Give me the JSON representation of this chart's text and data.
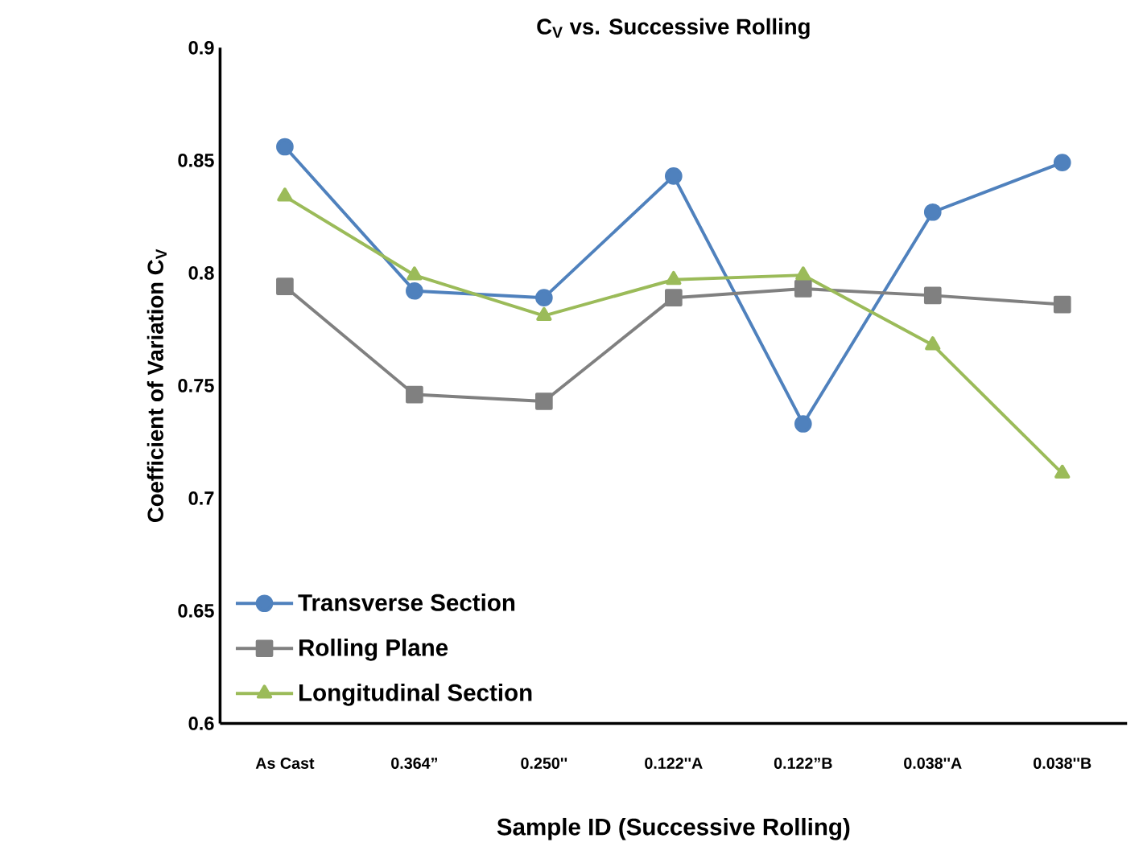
{
  "chart_data": {
    "type": "line",
    "title": "C$_{V}$ vs. Successive Rolling",
    "xlabel": "Sample ID (Successive Rolling)",
    "ylabel": "Coefficient of Variation C$_{V}$",
    "categories": [
      "As Cast",
      "0.364”",
      "0.250''",
      "0.122''A",
      "0.122”B",
      "0.038''A",
      "0.038''B"
    ],
    "ylim": [
      0.6,
      0.9
    ],
    "yticks": [
      0.6,
      0.65,
      0.7,
      0.75,
      0.8,
      0.85,
      0.9
    ],
    "grid": false,
    "legend": "bottom left",
    "line_style": "solid",
    "series": [
      {
        "name": "Transverse Section",
        "color": "#4f81bd",
        "marker": "circle",
        "values": [
          0.856,
          0.792,
          0.789,
          0.843,
          0.733,
          0.827,
          0.849
        ]
      },
      {
        "name": "Rolling Plane",
        "color": "#808080",
        "marker": "square",
        "values": [
          0.794,
          0.746,
          0.743,
          0.789,
          0.793,
          0.79,
          0.786
        ]
      },
      {
        "name": "Longitudinal Section",
        "color": "#9bbb59",
        "marker": "triangle",
        "values": [
          0.834,
          0.799,
          0.781,
          0.797,
          0.799,
          0.768,
          0.711
        ]
      }
    ]
  }
}
